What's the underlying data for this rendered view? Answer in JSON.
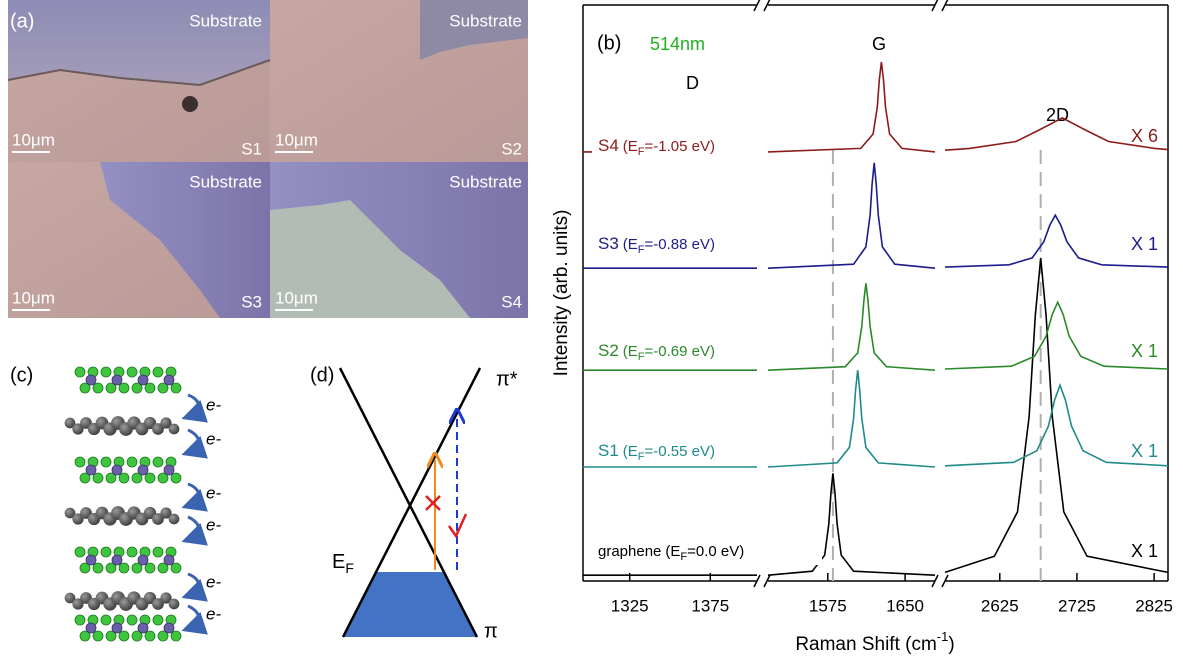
{
  "panel_labels": [
    "(a)",
    "(b)",
    "(c)",
    "(d)"
  ],
  "panel_a": {
    "images": [
      {
        "substrate": "Substrate",
        "scale_bar": "10μm",
        "sample": "S1"
      },
      {
        "substrate": "Substrate",
        "scale_bar": "10μm",
        "sample": "S2"
      },
      {
        "substrate": "Substrate",
        "scale_bar": "10μm",
        "sample": "S3"
      },
      {
        "substrate": "Substrate",
        "scale_bar": "10μm",
        "sample": "S4"
      }
    ]
  },
  "panel_c": {
    "electron_labels": [
      "e-",
      "e-",
      "e-",
      "e-",
      "e-",
      "e-"
    ]
  },
  "panel_d": {
    "upper_band": "π*",
    "lower_band": "π",
    "fermi_level": [
      "E",
      "F"
    ]
  },
  "chart_data": {
    "type": "line",
    "laser": "514nm",
    "peak_labels": [
      "D",
      "G",
      "2D"
    ],
    "y_label": "Intensity (arb. units)",
    "x_label": [
      "Raman Shift (cm",
      "-1",
      ")"
    ],
    "xlim_segments": [
      [
        1296,
        1404
      ],
      [
        1517,
        1679
      ],
      [
        2554,
        2843
      ]
    ],
    "xticks": [
      1325,
      1375,
      1575,
      1650,
      2625,
      2725,
      2825
    ],
    "ylim": [
      0,
      100
    ],
    "reference_lines": [
      1580,
      2678
    ],
    "series": [
      {
        "name": "graphene",
        "doping_label": [
          "(E",
          "F",
          "=0.0 eV)"
        ],
        "scale_label": "X 1",
        "color": "#000000",
        "x": [
          1296,
          1404,
          null,
          1517,
          1560,
          1572,
          1576,
          1578,
          1580,
          1582,
          1584,
          1588,
          1600,
          1679,
          null,
          2554,
          2618,
          2648,
          2663,
          2671,
          2678,
          2685,
          2693,
          2708,
          2738,
          2843
        ],
        "values": [
          1,
          1,
          null,
          1,
          1.7,
          4.5,
          9.9,
          15.2,
          18.7,
          15.2,
          9.9,
          4.5,
          1.7,
          1,
          null,
          1.5,
          4.3,
          12,
          28.5,
          46.1,
          56.1,
          46.1,
          28.5,
          12,
          4.3,
          1.5
        ]
      },
      {
        "name": "S1",
        "doping_label": [
          "(E",
          "F",
          "=-0.55 eV)"
        ],
        "scale_label": "X 1",
        "color": "#1f8a8a",
        "x": [
          1296,
          1404,
          null,
          1517,
          1584,
          1596,
          1600,
          1602,
          1604,
          1606,
          1608,
          1612,
          1624,
          1679,
          null,
          2554,
          2643,
          2673,
          2688,
          2696,
          2703,
          2710,
          2718,
          2733,
          2763,
          2843
        ],
        "values": [
          19.8,
          19.8,
          null,
          19.8,
          20.5,
          23.2,
          28.2,
          33.2,
          36.6,
          33.2,
          28.2,
          23.2,
          20.5,
          19.8,
          null,
          20.0,
          20.6,
          22.6,
          26.9,
          31.4,
          34.0,
          31.4,
          26.9,
          22.6,
          20.6,
          20.0
        ]
      },
      {
        "name": "S2",
        "doping_label": [
          "(E",
          "F",
          "=-0.69 eV)"
        ],
        "scale_label": "X 1",
        "color": "#2a8a2a",
        "x": [
          1296,
          1404,
          null,
          1517,
          1592,
          1604,
          1608,
          1610,
          1612,
          1614,
          1616,
          1620,
          1632,
          1679,
          null,
          2554,
          2640,
          2670,
          2685,
          2693,
          2700,
          2707,
          2715,
          2730,
          2760,
          2843
        ],
        "values": [
          36.6,
          36.6,
          null,
          36.6,
          37.2,
          39.6,
          44.2,
          48.7,
          51.7,
          48.7,
          44.2,
          39.6,
          37.2,
          36.6,
          null,
          36.8,
          37.3,
          39.0,
          42.5,
          46.3,
          48.4,
          46.3,
          42.5,
          39.0,
          37.3,
          36.8
        ]
      },
      {
        "name": "S3",
        "doping_label": [
          "(E",
          "F",
          "=-0.88 eV)"
        ],
        "scale_label": "X 1",
        "color": "#1c1c8e",
        "x": [
          1296,
          1404,
          null,
          1517,
          1600,
          1612,
          1616,
          1618,
          1620,
          1622,
          1624,
          1628,
          1640,
          1679,
          null,
          2554,
          2637,
          2667,
          2682,
          2690,
          2697,
          2704,
          2712,
          2727,
          2757,
          2843
        ],
        "values": [
          54.3,
          54.3,
          null,
          54.3,
          55.0,
          58.0,
          63.5,
          68.9,
          72.6,
          68.9,
          63.5,
          58.0,
          55.0,
          54.3,
          null,
          54.5,
          54.9,
          56.1,
          58.9,
          61.8,
          63.5,
          61.8,
          58.9,
          56.1,
          54.9,
          54.5
        ]
      },
      {
        "name": "S4",
        "doping_label": [
          "(E",
          "F",
          "=-1.05 eV)"
        ],
        "scale_label": "X 6",
        "color": "#8b1c1c",
        "x": [
          1296,
          1404,
          null,
          1517,
          1607,
          1619,
          1623,
          1625,
          1627,
          1629,
          1631,
          1635,
          1647,
          1679,
          null,
          2554,
          2586,
          2646,
          2676,
          2706,
          2736,
          2766,
          2826,
          2843
        ],
        "values": [
          74.5,
          74.5,
          null,
          74.5,
          75.1,
          77.6,
          82.3,
          87.0,
          90.1,
          87.0,
          82.3,
          77.6,
          75.1,
          74.5,
          null,
          74.8,
          75.1,
          76.3,
          78.3,
          80.4,
          78.3,
          76.3,
          75.1,
          74.9
        ]
      }
    ]
  }
}
